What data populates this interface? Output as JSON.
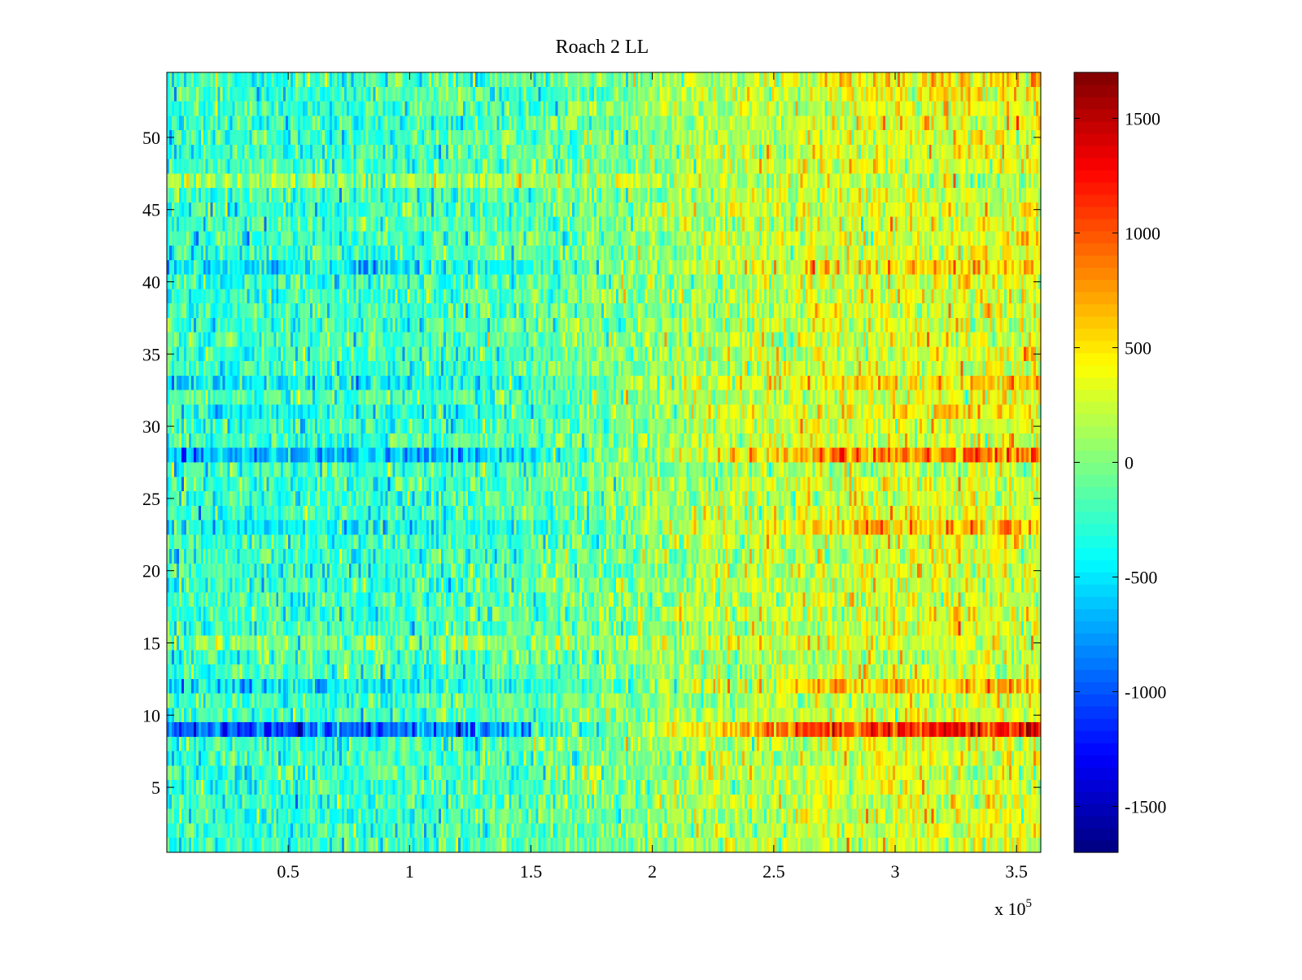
{
  "chart_data": {
    "type": "heatmap",
    "title": "Roach 2 LL",
    "xlabel": "",
    "ylabel": "",
    "x_multiplier_label": "x 10",
    "x_multiplier_exponent": "5",
    "xlim": [
      0,
      3.6
    ],
    "ylim": [
      0.5,
      54.5
    ],
    "x_ticks": [
      0.5,
      1,
      1.5,
      2,
      2.5,
      3,
      3.5
    ],
    "x_tick_labels": [
      "0.5",
      "1",
      "1.5",
      "2",
      "2.5",
      "3",
      "3.5"
    ],
    "y_ticks": [
      5,
      10,
      15,
      20,
      25,
      30,
      35,
      40,
      45,
      50
    ],
    "y_tick_labels": [
      "5",
      "10",
      "15",
      "20",
      "25",
      "30",
      "35",
      "40",
      "45",
      "50"
    ],
    "n_rows": 54,
    "n_cols": 360,
    "colormap": "jet",
    "colorbar": {
      "clim": [
        -1700,
        1700
      ],
      "ticks": [
        1500,
        1000,
        500,
        0,
        -500,
        -1000,
        -1500
      ],
      "tick_labels": [
        "1500",
        "1000",
        "500",
        "0",
        "-500",
        "-1000",
        "-1500"
      ]
    },
    "trend": {
      "description_x_fraction_break": 0.55,
      "left_mean": -250,
      "right_mean": 320,
      "noise_sd": 230
    },
    "row_offsets": {
      "9": -700,
      "12": -250,
      "15": 250,
      "23": -200,
      "28": -450,
      "31": -150,
      "33": -250,
      "41": -250,
      "47": 300
    },
    "row_trend_gain": {
      "9": 1.9,
      "12": 1.3,
      "23": 1.4,
      "28": 1.5,
      "54": 1.4,
      "53": 1.3,
      "47": 0.5,
      "27": 0.6,
      "11": 0.7,
      "14": 0.8
    }
  }
}
